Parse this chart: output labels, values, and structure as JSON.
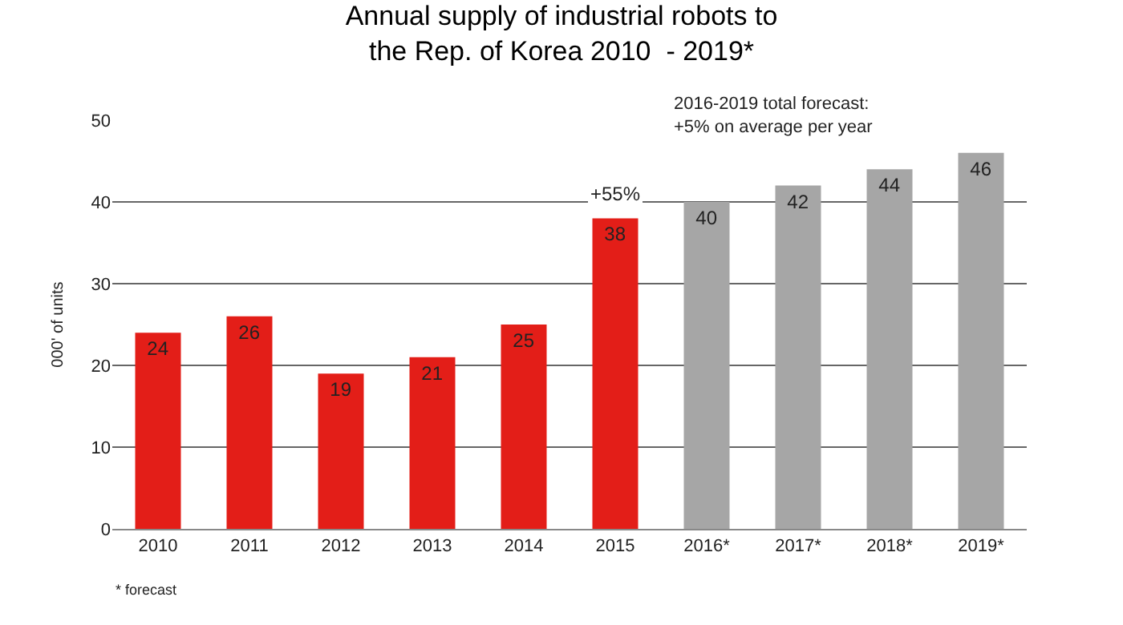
{
  "chart_data": {
    "type": "bar",
    "title": "Annual supply of industrial robots to\nthe Rep. of Korea 2010  - 2019*",
    "ylabel": "000' of units",
    "categories": [
      "2010",
      "2011",
      "2012",
      "2013",
      "2014",
      "2015",
      "2016*",
      "2017*",
      "2018*",
      "2019*"
    ],
    "values": [
      24,
      26,
      19,
      21,
      25,
      38,
      40,
      42,
      44,
      46
    ],
    "colors": [
      "#e31e18",
      "#e31e18",
      "#e31e18",
      "#e31e18",
      "#e31e18",
      "#e31e18",
      "#a6a6a6",
      "#a6a6a6",
      "#a6a6a6",
      "#a6a6a6"
    ],
    "ylim": [
      0,
      50
    ],
    "yticks": [
      0,
      10,
      20,
      30,
      40,
      50
    ],
    "grid": "y",
    "data_labels": true,
    "annotations": [
      {
        "text": "+55%",
        "x": "2015",
        "y": 38
      },
      "2016-2019 total forecast:\n+5% on average per year",
      "* forecast"
    ]
  }
}
